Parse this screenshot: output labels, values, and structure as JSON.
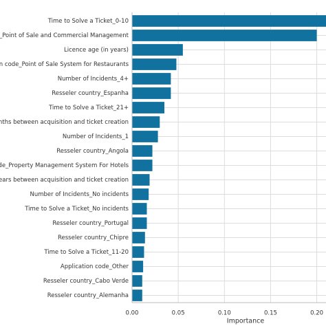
{
  "chart_data": {
    "type": "barh",
    "xlabel": "Importance",
    "categories": [
      "Time to Solve a Ticket_0-10",
      "code_Point of Sale and Commercial Management",
      "Licence age (in years)",
      "ation code_Point of Sale System for Restaurants",
      "Number of Incidents_4+",
      "Resseler country_Espanha",
      "Time to Solve a Ticket_21+",
      "Months between acquisition and ticket creation",
      "Number of Incidents_1",
      "Resseler country_Angola",
      "n code_Property Management System For Hotels",
      "Years between acquisition and ticket creation",
      "Number of Incidents_No incidents",
      "Time to Solve a Ticket_No incidents",
      "Resseler country_Portugal",
      "Resseler country_Chipre",
      "Time to Solve a Ticket_11-20",
      "Application code_Other",
      "Resseler country_Cabo Verde",
      "Resseler country_Alemanha"
    ],
    "values": [
      0.215,
      0.2,
      0.055,
      0.048,
      0.042,
      0.042,
      0.035,
      0.03,
      0.028,
      0.022,
      0.022,
      0.019,
      0.018,
      0.016,
      0.016,
      0.014,
      0.013,
      0.012,
      0.011,
      0.011
    ],
    "color": "#11729f",
    "xlim": [
      0,
      0.21
    ],
    "xticks": [
      {
        "value": 0,
        "label": "0.00"
      },
      {
        "value": 0.05,
        "label": "0.05"
      },
      {
        "value": 0.1,
        "label": "0.10"
      },
      {
        "value": 0.15,
        "label": "0.15"
      },
      {
        "value": 0.2,
        "label": "0.20"
      }
    ],
    "grid": true
  }
}
